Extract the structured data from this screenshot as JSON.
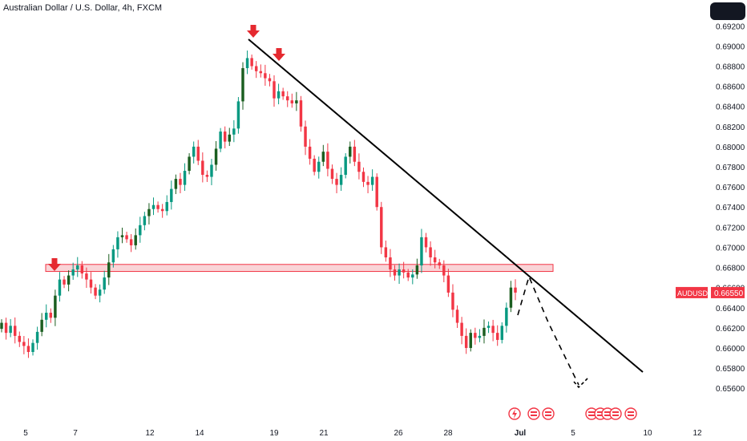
{
  "header": {
    "title": "Australian Dollar / U.S. Dollar, 4h, FXCM"
  },
  "price_label": {
    "symbol": "AUDUSD",
    "price": "0.66550",
    "color": "#f23645"
  },
  "colors": {
    "up": "#089981",
    "up_dark": "#1b5e20",
    "down": "#f23645",
    "zone_fill": "#f7c6c9",
    "zone_stroke": "#f23645",
    "trendline": "#000000",
    "axis_text": "#131722"
  },
  "chart_data": {
    "type": "candlestick",
    "symbol": "AUDUSD",
    "timeframe": "4h",
    "source": "FXCM",
    "y_range": [
      0.6545,
      0.6925
    ],
    "y_ticks": [
      "0.69200",
      "0.69000",
      "0.68800",
      "0.68600",
      "0.68400",
      "0.68200",
      "0.68000",
      "0.67800",
      "0.67600",
      "0.67400",
      "0.67200",
      "0.67000",
      "0.66800",
      "0.66600",
      "0.66400",
      "0.66200",
      "0.66000",
      "0.65800",
      "0.65600"
    ],
    "x_ticks": [
      "5",
      "7",
      "12",
      "14",
      "19",
      "21",
      "26",
      "28",
      "Jul",
      "5",
      "10",
      "12"
    ],
    "candle_closes": [
      0.6625,
      0.6615,
      0.6622,
      0.6612,
      0.6606,
      0.6602,
      0.6596,
      0.6605,
      0.6616,
      0.6628,
      0.6635,
      0.663,
      0.6652,
      0.6668,
      0.6663,
      0.6672,
      0.6678,
      0.6682,
      0.6674,
      0.6668,
      0.666,
      0.6652,
      0.6658,
      0.667,
      0.6685,
      0.6698,
      0.671,
      0.6712,
      0.6708,
      0.6702,
      0.6712,
      0.6722,
      0.6731,
      0.6738,
      0.6742,
      0.6738,
      0.6736,
      0.6745,
      0.6758,
      0.6768,
      0.6762,
      0.6776,
      0.679,
      0.68,
      0.6786,
      0.6772,
      0.677,
      0.6782,
      0.6798,
      0.6815,
      0.6805,
      0.6812,
      0.6818,
      0.6845,
      0.6878,
      0.6888,
      0.688,
      0.6875,
      0.6873,
      0.6868,
      0.6865,
      0.6848,
      0.6855,
      0.685,
      0.6846,
      0.6843,
      0.6846,
      0.682,
      0.68,
      0.6788,
      0.6775,
      0.6785,
      0.6795,
      0.6778,
      0.6768,
      0.6762,
      0.6772,
      0.679,
      0.68,
      0.6785,
      0.6775,
      0.6765,
      0.6762,
      0.677,
      0.674,
      0.67,
      0.669,
      0.6678,
      0.6672,
      0.6678,
      0.6675,
      0.667,
      0.6673,
      0.6682,
      0.671,
      0.67,
      0.669,
      0.6685,
      0.6682,
      0.6672,
      0.6655,
      0.6638,
      0.6625,
      0.6612,
      0.66,
      0.6615,
      0.661,
      0.6612,
      0.662,
      0.6622,
      0.6615,
      0.6608,
      0.6622,
      0.664,
      0.666,
      0.6655
    ],
    "horizontal_zone": {
      "low": 0.6676,
      "high": 0.6683
    },
    "trendline": {
      "start": [
        17.6,
        0.6901
      ],
      "end": [
        10.5,
        0.659
      ]
    },
    "projection_path": [
      [
        0.6641,
        "up"
      ],
      [
        0.668,
        "peak"
      ],
      [
        0.662,
        "down"
      ],
      [
        0.657,
        "down"
      ]
    ],
    "annotations": [
      "down-arrow",
      "down-arrow",
      "down-arrow"
    ],
    "event_icons": [
      "lightning-icon",
      "flag-icon",
      "flag-icon",
      "flag-icon",
      "flag-icon",
      "flag-icon",
      "flag-icon",
      "flag-icon"
    ],
    "grid": false
  }
}
